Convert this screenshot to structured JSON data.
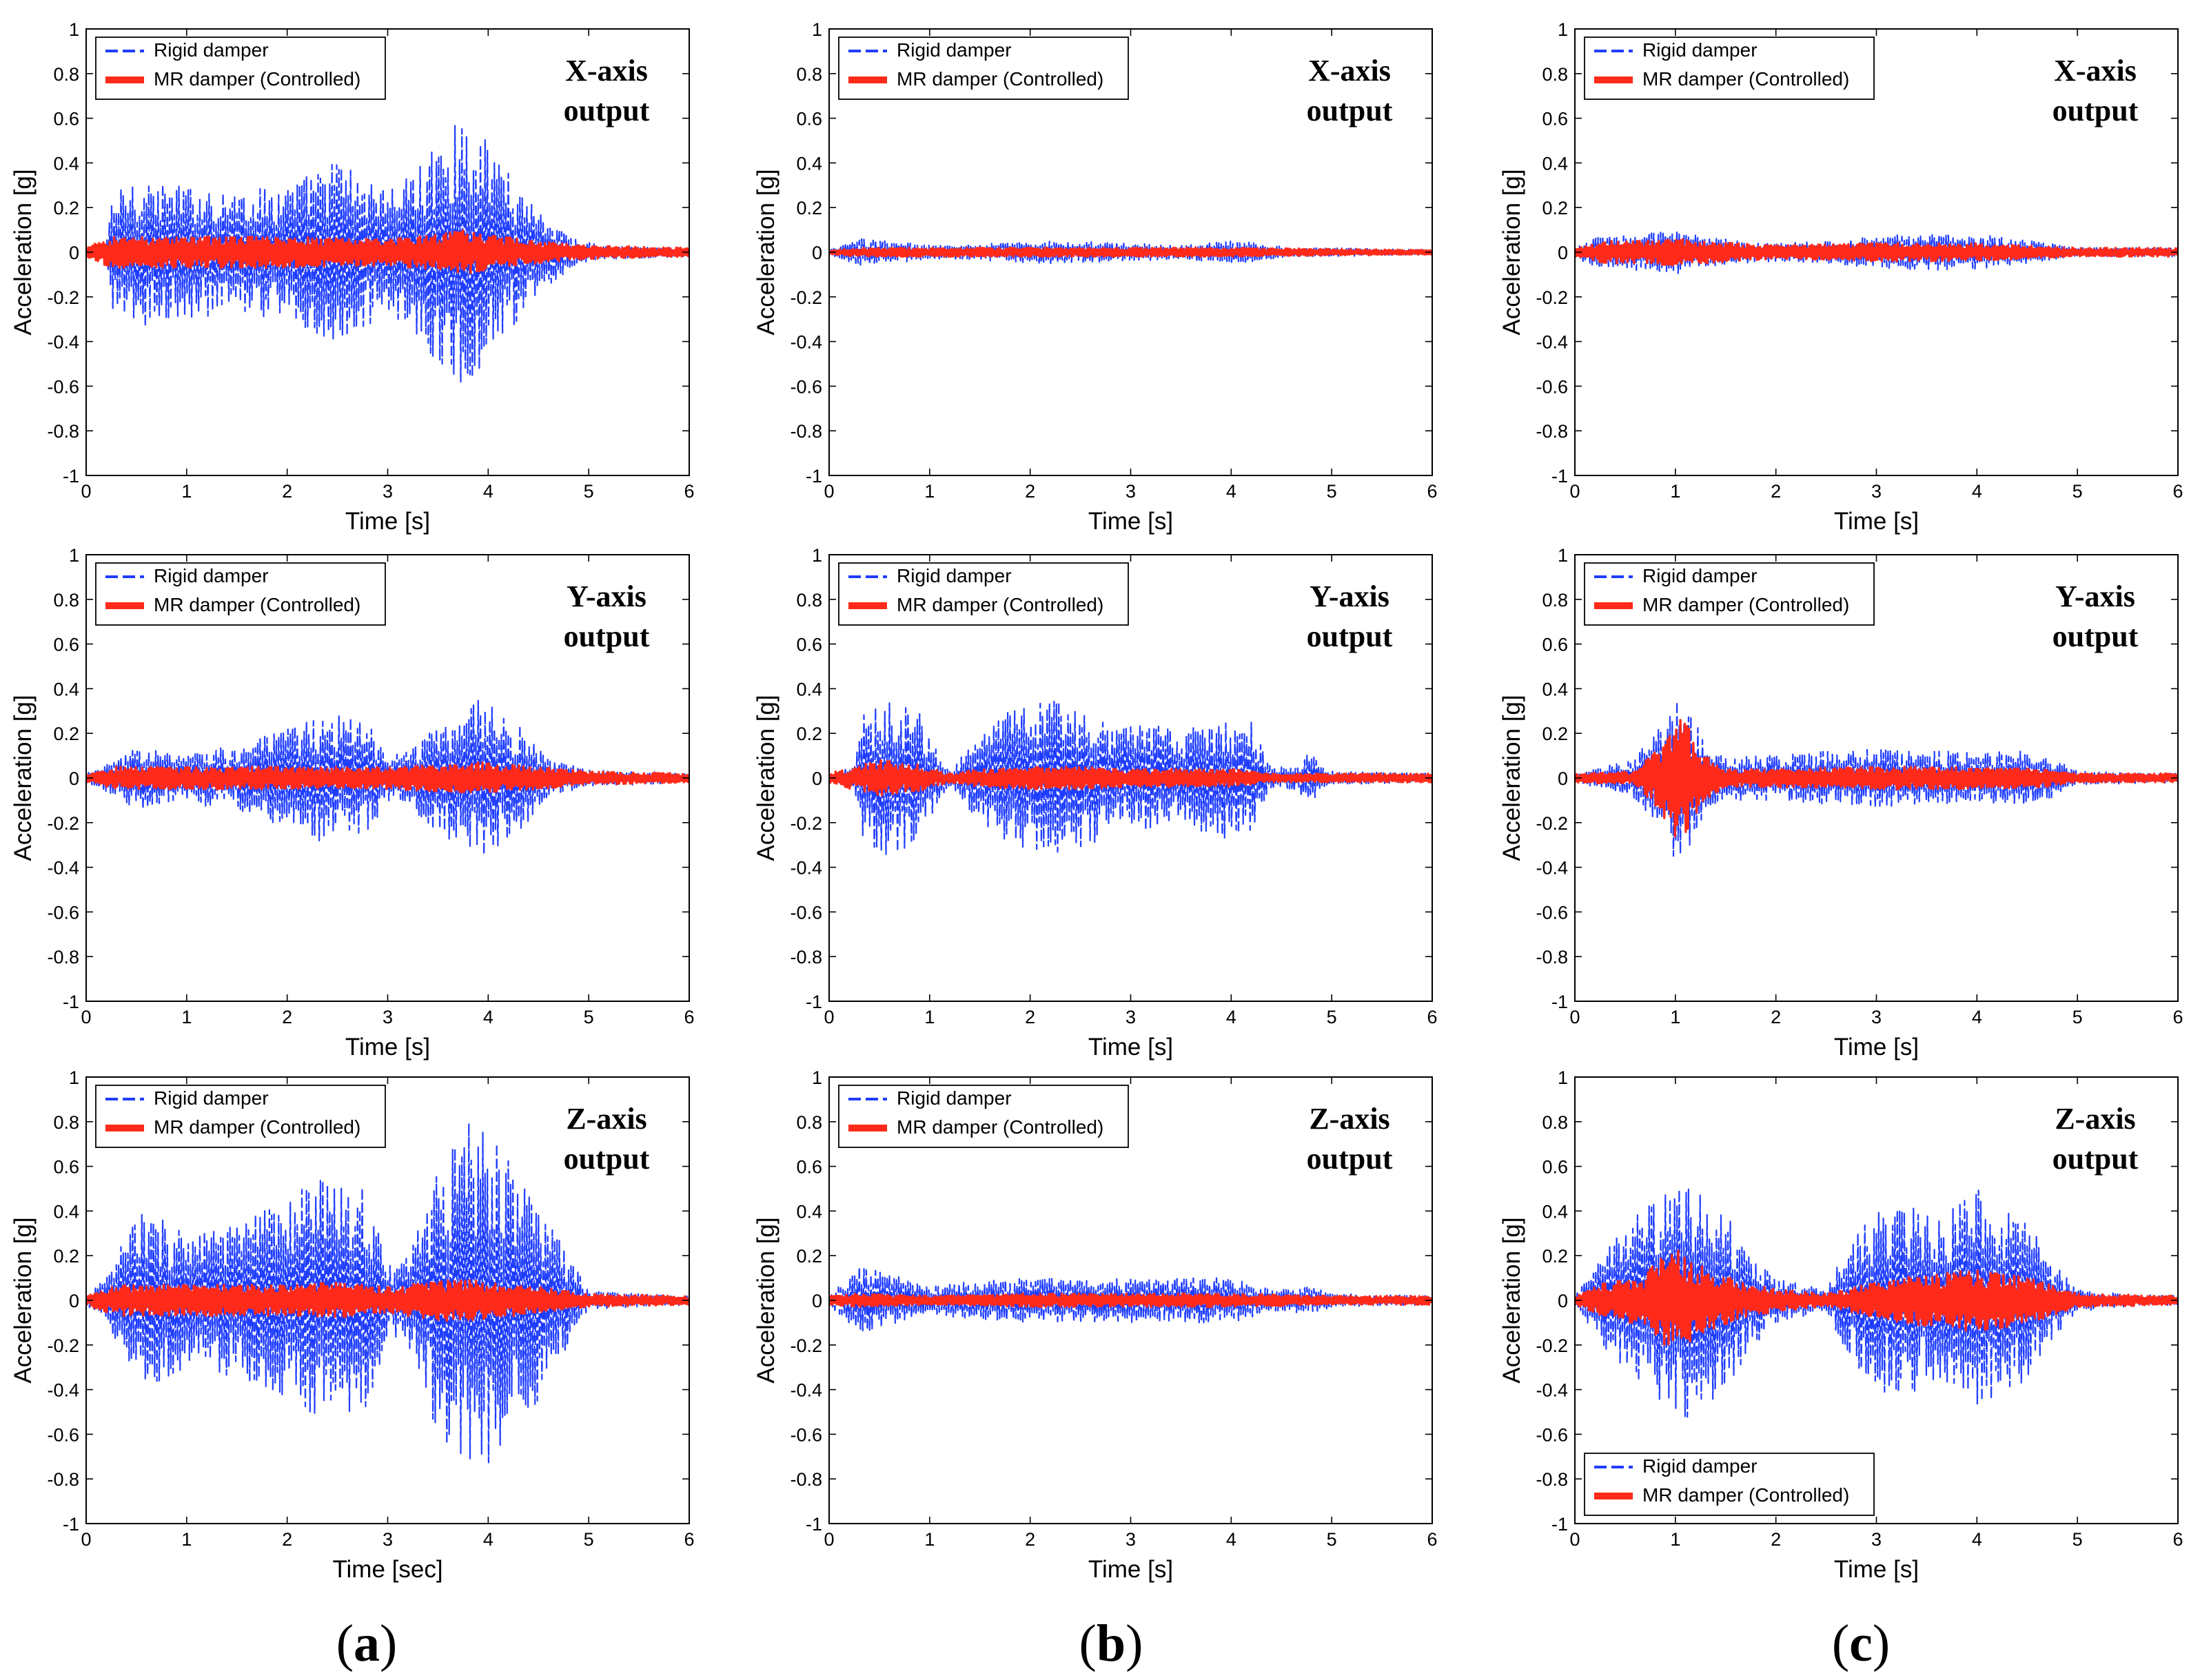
{
  "figure": {
    "panel_labels": [
      {
        "open": "(",
        "letter": "a",
        "close": ")"
      },
      {
        "open": "(",
        "letter": "b",
        "close": ")"
      },
      {
        "open": "(",
        "letter": "c",
        "close": ")"
      }
    ]
  },
  "colors": {
    "rigid": "#1f3dff",
    "mr": "#ff2a1a",
    "axis": "#000000"
  },
  "chart_data": [
    {
      "type": "line",
      "column": "a",
      "row": 1,
      "ylabel": "Acceleration [g]",
      "xlabel": "Time [s]",
      "xlim": [
        0,
        6
      ],
      "ylim": [
        -1,
        1
      ],
      "xticks": [
        "0",
        "1",
        "2",
        "3",
        "4",
        "5",
        "6"
      ],
      "yticks": [
        "1",
        "0.8",
        "0.6",
        "0.4",
        "0.2",
        "0",
        "-0.2",
        "-0.4",
        "-0.6",
        "-0.8",
        "-1"
      ],
      "legend": {
        "position": "top-left",
        "entries": [
          "Rigid damper",
          "MR damper (Controlled)"
        ]
      },
      "annotation": [
        "X-axis",
        "output"
      ],
      "series": [
        {
          "name": "Rigid damper",
          "style": "dashed",
          "envelope_x": [
            0,
            0.2,
            0.25,
            0.5,
            0.8,
            1.0,
            1.5,
            2.0,
            2.5,
            2.9,
            3.1,
            3.3,
            3.5,
            3.75,
            4.0,
            4.3,
            4.6,
            4.9,
            5.2,
            6.0
          ],
          "envelope_y": [
            0.02,
            0.02,
            0.25,
            0.35,
            0.3,
            0.3,
            0.28,
            0.3,
            0.42,
            0.3,
            0.3,
            0.38,
            0.5,
            0.6,
            0.5,
            0.3,
            0.15,
            0.05,
            0.03,
            0.02
          ]
        },
        {
          "name": "MR damper (Controlled)",
          "style": "solid",
          "envelope_x": [
            0,
            0.25,
            1.0,
            2.0,
            3.0,
            3.5,
            3.75,
            4.0,
            4.5,
            5.0,
            6.0
          ],
          "envelope_y": [
            0.02,
            0.07,
            0.07,
            0.07,
            0.06,
            0.08,
            0.1,
            0.08,
            0.05,
            0.03,
            0.02
          ]
        }
      ]
    },
    {
      "type": "line",
      "column": "a",
      "row": 2,
      "ylabel": "Acceleration [g]",
      "xlabel": "Time [s]",
      "xlim": [
        0,
        6
      ],
      "ylim": [
        -1,
        1
      ],
      "xticks": [
        "0",
        "1",
        "2",
        "3",
        "4",
        "5",
        "6"
      ],
      "yticks": [
        "1",
        "0.8",
        "0.6",
        "0.4",
        "0.2",
        "0",
        "-0.2",
        "-0.4",
        "-0.6",
        "-0.8",
        "-1"
      ],
      "legend": {
        "position": "top-left",
        "entries": [
          "Rigid damper",
          "MR damper (Controlled)"
        ]
      },
      "annotation": [
        "Y-axis",
        "output"
      ],
      "series": [
        {
          "name": "Rigid damper",
          "style": "dashed",
          "envelope_x": [
            0,
            0.3,
            0.5,
            0.9,
            1.1,
            1.5,
            2.0,
            2.4,
            2.8,
            3.0,
            3.2,
            3.5,
            3.9,
            4.3,
            4.6,
            5.0,
            6.0
          ],
          "envelope_y": [
            0.02,
            0.08,
            0.15,
            0.1,
            0.12,
            0.15,
            0.22,
            0.3,
            0.25,
            0.1,
            0.12,
            0.25,
            0.36,
            0.25,
            0.08,
            0.04,
            0.02
          ]
        },
        {
          "name": "MR damper (Controlled)",
          "style": "solid",
          "envelope_x": [
            0,
            0.3,
            1.0,
            2.0,
            3.0,
            3.5,
            3.9,
            4.5,
            5.0,
            6.0
          ],
          "envelope_y": [
            0.02,
            0.05,
            0.05,
            0.05,
            0.05,
            0.06,
            0.07,
            0.05,
            0.03,
            0.02
          ]
        }
      ]
    },
    {
      "type": "line",
      "column": "a",
      "row": 3,
      "ylabel": "Acceleration [g]",
      "xlabel": "Time [sec]",
      "xlim": [
        0,
        6
      ],
      "ylim": [
        -1,
        1
      ],
      "xticks": [
        "0",
        "1",
        "2",
        "3",
        "4",
        "5",
        "6"
      ],
      "yticks": [
        "1",
        "0.8",
        "0.6",
        "0.4",
        "0.2",
        "0",
        "-0.2",
        "-0.4",
        "-0.6",
        "-0.8",
        "-1"
      ],
      "legend": {
        "position": "top-left",
        "entries": [
          "Rigid damper",
          "MR damper (Controlled)"
        ]
      },
      "annotation": [
        "Z-axis",
        "output"
      ],
      "series": [
        {
          "name": "Rigid damper",
          "style": "dashed",
          "envelope_x": [
            0,
            0.2,
            0.5,
            0.9,
            1.1,
            1.5,
            2.0,
            2.4,
            2.8,
            3.0,
            3.2,
            3.5,
            3.8,
            4.1,
            4.5,
            4.8,
            5.0,
            6.0
          ],
          "envelope_y": [
            0.02,
            0.1,
            0.4,
            0.35,
            0.3,
            0.35,
            0.45,
            0.58,
            0.5,
            0.15,
            0.2,
            0.6,
            0.82,
            0.7,
            0.45,
            0.2,
            0.04,
            0.02
          ]
        },
        {
          "name": "MR damper (Controlled)",
          "style": "solid",
          "envelope_x": [
            0,
            0.3,
            1.0,
            2.0,
            2.5,
            3.0,
            3.7,
            4.0,
            4.5,
            5.0,
            6.0
          ],
          "envelope_y": [
            0.02,
            0.07,
            0.07,
            0.07,
            0.08,
            0.06,
            0.1,
            0.08,
            0.06,
            0.03,
            0.02
          ]
        }
      ]
    },
    {
      "type": "line",
      "column": "b",
      "row": 1,
      "ylabel": "Acceleration [g]",
      "xlabel": "Time [s]",
      "xlim": [
        0,
        6
      ],
      "ylim": [
        -1,
        1
      ],
      "xticks": [
        "0",
        "1",
        "2",
        "3",
        "4",
        "5",
        "6"
      ],
      "yticks": [
        "1",
        "0.8",
        "0.6",
        "0.4",
        "0.2",
        "0",
        "-0.2",
        "-0.4",
        "-0.6",
        "-0.8",
        "-1"
      ],
      "legend": {
        "position": "top-left",
        "entries": [
          "Rigid damper",
          "MR damper (Controlled)"
        ]
      },
      "annotation": [
        "X-axis",
        "output"
      ],
      "series": [
        {
          "name": "Rigid damper",
          "style": "dashed",
          "envelope_x": [
            0,
            0.3,
            0.7,
            1.0,
            1.3,
            2.0,
            2.5,
            3.0,
            3.5,
            4.0,
            4.3,
            4.6,
            5.0,
            6.0
          ],
          "envelope_y": [
            0.01,
            0.06,
            0.05,
            0.03,
            0.03,
            0.05,
            0.05,
            0.04,
            0.03,
            0.05,
            0.04,
            0.02,
            0.02,
            0.01
          ]
        },
        {
          "name": "MR damper (Controlled)",
          "style": "solid",
          "envelope_x": [
            0,
            0.3,
            1.0,
            2.0,
            3.0,
            4.0,
            5.0,
            6.0
          ],
          "envelope_y": [
            0.01,
            0.02,
            0.02,
            0.02,
            0.02,
            0.02,
            0.015,
            0.01
          ]
        }
      ]
    },
    {
      "type": "line",
      "column": "b",
      "row": 2,
      "ylabel": "Acceleration [g]",
      "xlabel": "Time [s]",
      "xlim": [
        0,
        6
      ],
      "ylim": [
        -1,
        1
      ],
      "xticks": [
        "0",
        "1",
        "2",
        "3",
        "4",
        "5",
        "6"
      ],
      "yticks": [
        "1",
        "0.8",
        "0.6",
        "0.4",
        "0.2",
        "0",
        "-0.2",
        "-0.4",
        "-0.6",
        "-0.8",
        "-1"
      ],
      "legend": {
        "position": "top-left",
        "entries": [
          "Rigid damper",
          "MR damper (Controlled)"
        ]
      },
      "annotation": [
        "Y-axis",
        "output"
      ],
      "series": [
        {
          "name": "Rigid damper",
          "style": "dashed",
          "envelope_x": [
            0,
            0.25,
            0.35,
            0.6,
            0.9,
            1.1,
            1.2,
            1.4,
            1.7,
            2.0,
            2.3,
            2.6,
            2.9,
            3.2,
            3.5,
            3.9,
            4.2,
            4.4,
            4.6,
            4.8,
            4.9,
            5.0,
            6.0
          ],
          "envelope_y": [
            0.02,
            0.05,
            0.3,
            0.35,
            0.3,
            0.1,
            0.03,
            0.15,
            0.28,
            0.33,
            0.35,
            0.3,
            0.22,
            0.25,
            0.2,
            0.28,
            0.25,
            0.05,
            0.05,
            0.12,
            0.05,
            0.03,
            0.02
          ]
        },
        {
          "name": "MR damper (Controlled)",
          "style": "solid",
          "envelope_x": [
            0,
            0.3,
            0.5,
            0.9,
            1.2,
            1.5,
            2.0,
            2.5,
            3.0,
            3.5,
            4.0,
            4.4,
            5.0,
            6.0
          ],
          "envelope_y": [
            0.02,
            0.06,
            0.08,
            0.06,
            0.02,
            0.04,
            0.05,
            0.05,
            0.04,
            0.04,
            0.04,
            0.02,
            0.02,
            0.02
          ]
        }
      ]
    },
    {
      "type": "line",
      "column": "b",
      "row": 3,
      "ylabel": "Acceleration [g]",
      "xlabel": "Time [s]",
      "xlim": [
        0,
        6
      ],
      "ylim": [
        -1,
        1
      ],
      "xticks": [
        "0",
        "1",
        "2",
        "3",
        "4",
        "5",
        "6"
      ],
      "yticks": [
        "1",
        "0.8",
        "0.6",
        "0.4",
        "0.2",
        "0",
        "-0.2",
        "-0.4",
        "-0.6",
        "-0.8",
        "-1"
      ],
      "legend": {
        "position": "top-left",
        "entries": [
          "Rigid damper",
          "MR damper (Controlled)"
        ]
      },
      "annotation": [
        "Z-axis",
        "output"
      ],
      "series": [
        {
          "name": "Rigid damper",
          "style": "dashed",
          "envelope_x": [
            0,
            0.3,
            0.6,
            1.0,
            1.3,
            2.0,
            2.5,
            3.0,
            3.5,
            4.0,
            4.4,
            4.8,
            5.0,
            6.0
          ],
          "envelope_y": [
            0.02,
            0.15,
            0.12,
            0.06,
            0.08,
            0.1,
            0.1,
            0.1,
            0.1,
            0.1,
            0.05,
            0.06,
            0.03,
            0.02
          ]
        },
        {
          "name": "MR damper (Controlled)",
          "style": "solid",
          "envelope_x": [
            0,
            0.3,
            1.0,
            2.0,
            3.0,
            4.0,
            5.0,
            6.0
          ],
          "envelope_y": [
            0.02,
            0.03,
            0.02,
            0.03,
            0.03,
            0.03,
            0.02,
            0.02
          ]
        }
      ]
    },
    {
      "type": "line",
      "column": "c",
      "row": 1,
      "ylabel": "Acceleration [g]",
      "xlabel": "Time [s]",
      "xlim": [
        0,
        6
      ],
      "ylim": [
        -1,
        1
      ],
      "xticks": [
        "0",
        "1",
        "2",
        "3",
        "4",
        "5",
        "6"
      ],
      "yticks": [
        "1",
        "0.8",
        "0.6",
        "0.4",
        "0.2",
        "0",
        "-0.2",
        "-0.4",
        "-0.6",
        "-0.8",
        "-1"
      ],
      "legend": {
        "position": "top-left",
        "entries": [
          "Rigid damper",
          "MR damper (Controlled)"
        ]
      },
      "annotation": [
        "X-axis",
        "output"
      ],
      "series": [
        {
          "name": "Rigid damper",
          "style": "dashed",
          "envelope_x": [
            0,
            0.2,
            0.6,
            1.0,
            1.3,
            1.7,
            2.0,
            2.5,
            3.0,
            3.3,
            3.6,
            4.0,
            4.4,
            4.7,
            5.0,
            6.0
          ],
          "envelope_y": [
            0.02,
            0.07,
            0.08,
            0.1,
            0.07,
            0.05,
            0.04,
            0.05,
            0.07,
            0.08,
            0.08,
            0.08,
            0.06,
            0.04,
            0.02,
            0.02
          ]
        },
        {
          "name": "MR damper (Controlled)",
          "style": "solid",
          "envelope_x": [
            0,
            0.3,
            1.0,
            2.0,
            3.0,
            4.0,
            5.0,
            6.0
          ],
          "envelope_y": [
            0.02,
            0.05,
            0.06,
            0.03,
            0.04,
            0.04,
            0.02,
            0.02
          ]
        }
      ]
    },
    {
      "type": "line",
      "column": "c",
      "row": 2,
      "ylabel": "Acceleration [g]",
      "xlabel": "Time [s]",
      "xlim": [
        0,
        6
      ],
      "ylim": [
        -1,
        1
      ],
      "xticks": [
        "0",
        "1",
        "2",
        "3",
        "4",
        "5",
        "6"
      ],
      "yticks": [
        "1",
        "0.8",
        "0.6",
        "0.4",
        "0.2",
        "0",
        "-0.2",
        "-0.4",
        "-0.6",
        "-0.8",
        "-1"
      ],
      "legend": {
        "position": "top-left",
        "entries": [
          "Rigid damper",
          "MR damper (Controlled)"
        ]
      },
      "annotation": [
        "Y-axis",
        "output"
      ],
      "series": [
        {
          "name": "Rigid damper",
          "style": "dashed",
          "envelope_x": [
            0,
            0.3,
            0.6,
            0.8,
            1.0,
            1.1,
            1.3,
            1.5,
            2.0,
            2.5,
            3.0,
            3.5,
            4.0,
            4.5,
            4.8,
            5.0,
            6.0
          ],
          "envelope_y": [
            0.02,
            0.05,
            0.1,
            0.2,
            0.38,
            0.35,
            0.15,
            0.1,
            0.1,
            0.12,
            0.13,
            0.12,
            0.12,
            0.12,
            0.08,
            0.03,
            0.02
          ]
        },
        {
          "name": "MR damper (Controlled)",
          "style": "solid",
          "envelope_x": [
            0,
            0.6,
            0.85,
            1.0,
            1.1,
            1.3,
            1.5,
            2.0,
            3.0,
            4.0,
            4.7,
            5.0,
            6.0
          ],
          "envelope_y": [
            0.02,
            0.03,
            0.15,
            0.28,
            0.25,
            0.1,
            0.04,
            0.04,
            0.05,
            0.05,
            0.04,
            0.02,
            0.02
          ]
        }
      ]
    },
    {
      "type": "line",
      "column": "c",
      "row": 3,
      "ylabel": "Acceleration [g]",
      "xlabel": "Time [s]",
      "xlim": [
        0,
        6
      ],
      "ylim": [
        -1,
        1
      ],
      "xticks": [
        "0",
        "1",
        "2",
        "3",
        "4",
        "5",
        "6"
      ],
      "yticks": [
        "1",
        "0.8",
        "0.6",
        "0.4",
        "0.2",
        "0",
        "-0.2",
        "-0.4",
        "-0.6",
        "-0.8",
        "-1"
      ],
      "legend": {
        "position": "bottom-left",
        "entries": [
          "Rigid damper",
          "MR damper (Controlled)"
        ]
      },
      "annotation": [
        "Z-axis",
        "output"
      ],
      "series": [
        {
          "name": "Rigid damper",
          "style": "dashed",
          "envelope_x": [
            0,
            0.2,
            0.5,
            0.8,
            1.0,
            1.2,
            1.5,
            1.8,
            2.0,
            2.5,
            2.7,
            3.0,
            3.3,
            3.6,
            4.0,
            4.2,
            4.5,
            4.8,
            5.0,
            5.5,
            6.0
          ],
          "envelope_y": [
            0.02,
            0.15,
            0.35,
            0.45,
            0.5,
            0.55,
            0.4,
            0.2,
            0.1,
            0.05,
            0.25,
            0.4,
            0.45,
            0.35,
            0.5,
            0.45,
            0.35,
            0.15,
            0.05,
            0.03,
            0.02
          ]
        },
        {
          "name": "MR damper (Controlled)",
          "style": "solid",
          "envelope_x": [
            0,
            0.3,
            0.7,
            1.0,
            1.3,
            1.7,
            2.0,
            2.5,
            3.0,
            3.5,
            4.0,
            4.3,
            4.7,
            5.0,
            6.0
          ],
          "envelope_y": [
            0.02,
            0.08,
            0.12,
            0.25,
            0.14,
            0.08,
            0.05,
            0.03,
            0.08,
            0.12,
            0.14,
            0.12,
            0.08,
            0.03,
            0.02
          ]
        }
      ]
    }
  ]
}
